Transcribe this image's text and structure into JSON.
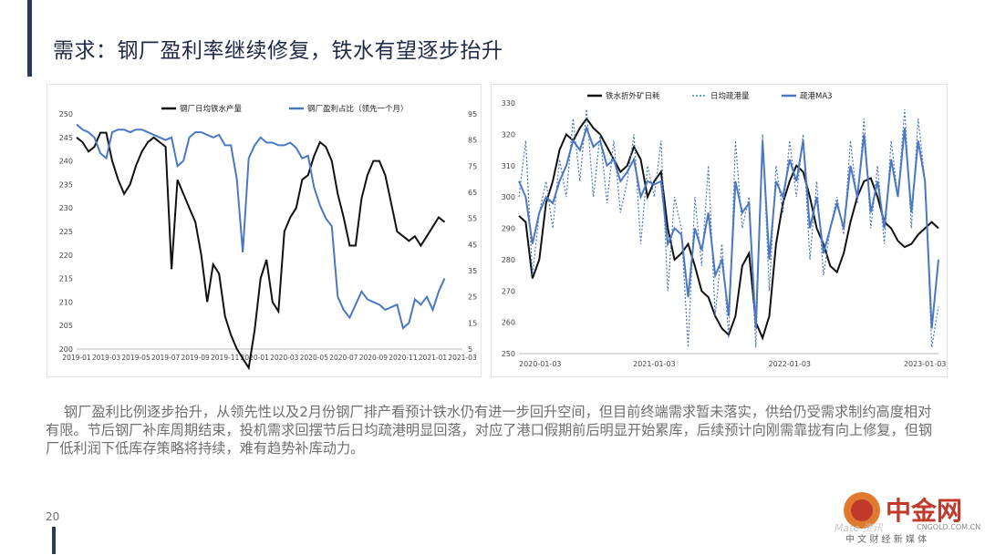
{
  "header": {
    "title": "需求：钢厂盈利率继续修复，铁水有望逐步抬升"
  },
  "paragraph": "钢厂盈利比例逐步抬升，从领先性以及2月份钢厂排产看预计铁水仍有进一步回升空间，但目前终端需求暂未落实，供给仍受需求制约高度相对有限。节后钢厂补库周期结束，投机需求回摆节后日均疏港明显回落，对应了港口假期前后明显开始累库，后续预计向刚需靠拢有向上修复，但钢厂低利润下低库存策略将持续，难有趋势补库动力。",
  "page_number": "20",
  "logo": {
    "cn": "中金网",
    "url": "CNGOLD.COM.CN",
    "sub": "中 文 财 经 新 媒 体",
    "en": "Mate 资讯",
    "color": "#c0392b"
  },
  "colors": {
    "black_series": "#111111",
    "blue_series": "#4a78c2",
    "accent": "#2b3a55"
  },
  "chart_data": [
    {
      "type": "line",
      "title": "",
      "legend": [
        "钢厂日均铁水产量",
        "钢厂盈利占比（领先一个月）"
      ],
      "legend_placement": "top",
      "x_ticks": [
        "2019-01",
        "2019-03",
        "2019-05",
        "2019-07",
        "2019-09",
        "2019-11",
        "2020-01",
        "2020-03",
        "2020-05",
        "2020-07",
        "2020-09",
        "2020-11",
        "2021-01",
        "2021-03"
      ],
      "ylim_left": [
        200,
        250
      ],
      "yticks_left": [
        200,
        205,
        210,
        215,
        220,
        225,
        230,
        235,
        240,
        245,
        250
      ],
      "ylim_right": [
        5,
        95
      ],
      "yticks_right": [
        5,
        15,
        25,
        35,
        45,
        55,
        65,
        75,
        85,
        95
      ],
      "series": [
        {
          "name": "钢厂日均铁水产量",
          "axis": "left",
          "color": "#111111",
          "x": [
            0,
            0.2,
            0.4,
            0.6,
            0.8,
            1.0,
            1.2,
            1.4,
            1.6,
            1.8,
            2.0,
            2.2,
            2.4,
            2.6,
            2.8,
            3.0,
            3.2,
            3.4,
            3.6,
            3.8,
            4.0,
            4.2,
            4.4,
            4.6,
            4.8,
            5.0,
            5.2,
            5.4,
            5.6,
            5.8,
            6.0,
            6.2,
            6.4,
            6.6,
            6.8,
            7.0,
            7.2,
            7.4,
            7.6,
            7.8,
            8.0,
            8.2,
            8.4,
            8.6,
            8.8,
            9.0,
            9.2,
            9.4,
            9.6,
            9.8,
            10.0,
            10.2,
            10.4,
            10.6,
            10.8,
            11.0,
            11.2,
            11.4,
            11.6,
            11.8,
            12.0,
            12.2,
            12.4
          ],
          "values": [
            245,
            244,
            242,
            243,
            246,
            246,
            240,
            236,
            233,
            235,
            239,
            242,
            244,
            245,
            244,
            243,
            217,
            236,
            233,
            230,
            227,
            220,
            210,
            218,
            216,
            207,
            203,
            200,
            198,
            196,
            204,
            215,
            219,
            210,
            208,
            225,
            228,
            230,
            236,
            237,
            241,
            244,
            243,
            240,
            233,
            228,
            222,
            222,
            232,
            237,
            240,
            240,
            237,
            231,
            225,
            224,
            223,
            224,
            222,
            224,
            226,
            228,
            227
          ]
        },
        {
          "name": "钢厂盈利占比（领先一个月）",
          "axis": "right",
          "color": "#4a78c2",
          "x": [
            0,
            0.2,
            0.4,
            0.6,
            0.8,
            1.0,
            1.2,
            1.4,
            1.6,
            1.8,
            2.0,
            2.2,
            2.4,
            2.6,
            2.8,
            3.0,
            3.2,
            3.4,
            3.6,
            3.8,
            4.0,
            4.2,
            4.4,
            4.6,
            4.8,
            5.0,
            5.2,
            5.4,
            5.6,
            5.8,
            6.0,
            6.2,
            6.4,
            6.6,
            6.8,
            7.0,
            7.2,
            7.4,
            7.6,
            7.8,
            8.0,
            8.2,
            8.4,
            8.6,
            8.8,
            9.0,
            9.2,
            9.4,
            9.6,
            9.8,
            10.0,
            10.2,
            10.4,
            10.6,
            10.8,
            11.0,
            11.2,
            11.4,
            11.6,
            11.8,
            12.0,
            12.2,
            12.4
          ],
          "values": [
            91,
            89,
            88,
            86,
            80,
            78,
            88,
            89,
            89,
            88,
            89,
            89,
            88,
            87,
            86,
            85,
            86,
            75,
            77,
            86,
            88,
            88,
            87,
            86,
            87,
            83,
            83,
            70,
            42,
            78,
            83,
            86,
            84,
            84,
            83,
            83,
            84,
            82,
            78,
            79,
            67,
            60,
            55,
            52,
            25,
            20,
            17,
            22,
            27,
            24,
            23,
            22,
            20,
            21,
            22,
            13,
            15,
            24,
            22,
            25,
            20,
            27,
            32
          ]
        }
      ]
    },
    {
      "type": "line",
      "title": "",
      "legend": [
        "铁水折外矿日耗",
        "日均疏港量",
        "疏港MA3"
      ],
      "legend_placement": "top",
      "x_ticks": [
        "2020-01-03",
        "2021-01-03",
        "2022-01-03",
        "2023-01-03"
      ],
      "ylim": [
        250,
        330
      ],
      "yticks": [
        250,
        260,
        270,
        280,
        290,
        300,
        310,
        320,
        330
      ],
      "series": [
        {
          "name": "铁水折外矿日耗",
          "color": "#111111",
          "x": [
            0,
            0.05,
            0.1,
            0.15,
            0.2,
            0.25,
            0.3,
            0.35,
            0.4,
            0.45,
            0.5,
            0.55,
            0.6,
            0.65,
            0.7,
            0.75,
            0.8,
            0.85,
            0.9,
            0.95,
            1.0,
            1.05,
            1.1,
            1.15,
            1.2,
            1.25,
            1.3,
            1.35,
            1.4,
            1.45,
            1.5,
            1.55,
            1.6,
            1.65,
            1.7,
            1.75,
            1.8,
            1.85,
            1.9,
            1.95,
            2.0,
            2.05,
            2.1,
            2.15,
            2.2,
            2.25,
            2.3,
            2.35,
            2.4,
            2.45,
            2.5,
            2.55,
            2.6,
            2.65,
            2.7,
            2.75,
            2.8,
            2.85,
            2.9,
            2.95,
            3.0,
            3.05,
            3.1
          ],
          "values": [
            294,
            292,
            274,
            280,
            298,
            305,
            315,
            320,
            318,
            322,
            325,
            322,
            320,
            316,
            312,
            308,
            310,
            316,
            312,
            300,
            305,
            308,
            290,
            280,
            282,
            285,
            278,
            270,
            268,
            262,
            258,
            256,
            262,
            278,
            282,
            260,
            255,
            262,
            285,
            298,
            305,
            310,
            308,
            300,
            290,
            285,
            278,
            276,
            282,
            292,
            300,
            305,
            306,
            300,
            292,
            290,
            286,
            284,
            285,
            288,
            290,
            292,
            290
          ]
        },
        {
          "name": "日均疏港量",
          "color": "#4a78c2",
          "dashed": true,
          "x": [
            0,
            0.05,
            0.1,
            0.15,
            0.2,
            0.25,
            0.3,
            0.35,
            0.4,
            0.45,
            0.5,
            0.55,
            0.6,
            0.65,
            0.7,
            0.75,
            0.8,
            0.85,
            0.9,
            0.95,
            1.0,
            1.05,
            1.1,
            1.15,
            1.2,
            1.25,
            1.3,
            1.35,
            1.4,
            1.45,
            1.5,
            1.55,
            1.6,
            1.65,
            1.7,
            1.75,
            1.8,
            1.85,
            1.9,
            1.95,
            2.0,
            2.05,
            2.1,
            2.15,
            2.2,
            2.25,
            2.3,
            2.35,
            2.4,
            2.45,
            2.5,
            2.55,
            2.6,
            2.65,
            2.7,
            2.75,
            2.8,
            2.85,
            2.9,
            2.95,
            3.0,
            3.05,
            3.1
          ],
          "values": [
            300,
            318,
            275,
            295,
            305,
            290,
            312,
            300,
            325,
            305,
            328,
            300,
            320,
            298,
            318,
            295,
            305,
            320,
            285,
            310,
            300,
            318,
            270,
            300,
            290,
            252,
            300,
            278,
            310,
            262,
            285,
            255,
            318,
            290,
            300,
            252,
            320,
            270,
            310,
            295,
            318,
            300,
            320,
            280,
            305,
            275,
            290,
            300,
            288,
            318,
            298,
            325,
            290,
            310,
            285,
            318,
            300,
            328,
            290,
            325,
            305,
            252,
            265
          ]
        },
        {
          "name": "疏港MA3",
          "color": "#4a78c2",
          "x": [
            0,
            0.05,
            0.1,
            0.15,
            0.2,
            0.25,
            0.3,
            0.35,
            0.4,
            0.45,
            0.5,
            0.55,
            0.6,
            0.65,
            0.7,
            0.75,
            0.8,
            0.85,
            0.9,
            0.95,
            1.0,
            1.05,
            1.1,
            1.15,
            1.2,
            1.25,
            1.3,
            1.35,
            1.4,
            1.45,
            1.5,
            1.55,
            1.6,
            1.65,
            1.7,
            1.75,
            1.8,
            1.85,
            1.9,
            1.95,
            2.0,
            2.05,
            2.1,
            2.15,
            2.2,
            2.25,
            2.3,
            2.35,
            2.4,
            2.45,
            2.5,
            2.55,
            2.6,
            2.65,
            2.7,
            2.75,
            2.8,
            2.85,
            2.9,
            2.95,
            3.0,
            3.05,
            3.1
          ],
          "values": [
            305,
            300,
            285,
            295,
            300,
            298,
            305,
            310,
            318,
            315,
            322,
            316,
            318,
            310,
            312,
            305,
            308,
            312,
            300,
            305,
            304,
            305,
            285,
            290,
            288,
            268,
            290,
            283,
            295,
            275,
            280,
            262,
            305,
            295,
            298,
            258,
            318,
            280,
            305,
            300,
            312,
            305,
            318,
            290,
            300,
            282,
            290,
            298,
            290,
            310,
            300,
            320,
            295,
            305,
            290,
            312,
            300,
            322,
            295,
            318,
            305,
            258,
            280
          ]
        }
      ]
    }
  ]
}
